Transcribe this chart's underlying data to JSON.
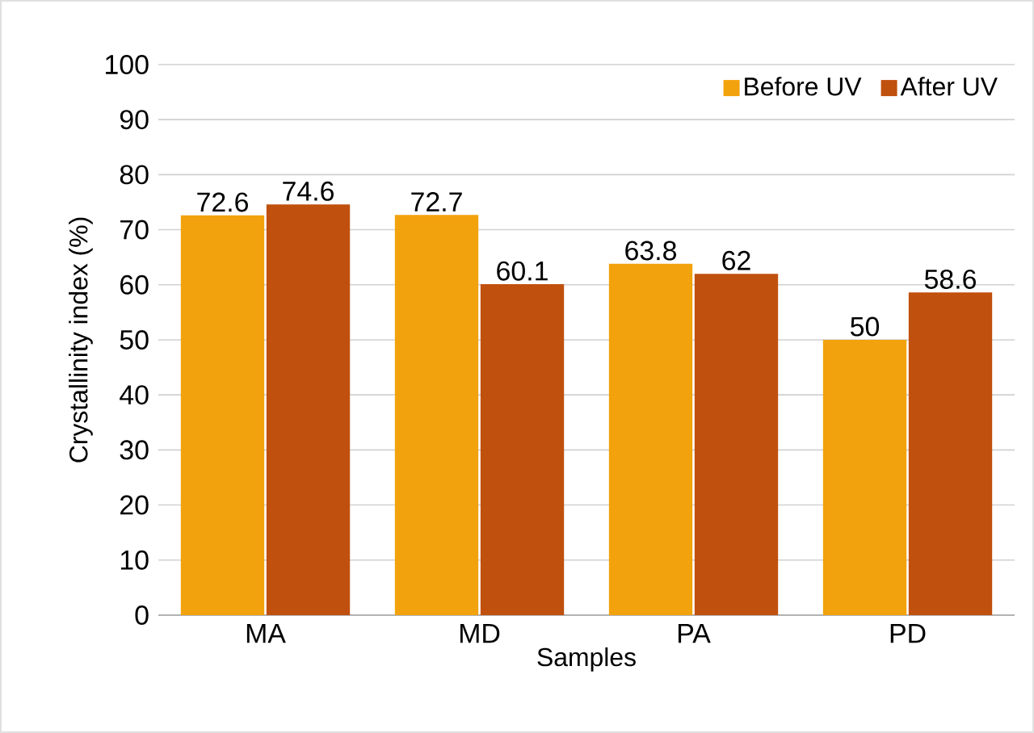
{
  "chart_data": {
    "type": "bar",
    "xlabel": "Samples",
    "ylabel": "Crystallinity index (%)",
    "categories": [
      "MA",
      "MD",
      "PA",
      "PD"
    ],
    "series": [
      {
        "name": "Before UV",
        "color": "#f2a20c",
        "values": [
          72.6,
          72.7,
          63.8,
          50
        ]
      },
      {
        "name": "After UV",
        "color": "#c0500e",
        "values": [
          74.6,
          60.1,
          62,
          58.6
        ]
      }
    ],
    "ylim": [
      0,
      100
    ],
    "yticks": [
      0,
      10,
      20,
      30,
      40,
      50,
      60,
      70,
      80,
      90,
      100
    ],
    "grid": "y",
    "legend": "top right",
    "data_labels": true
  }
}
